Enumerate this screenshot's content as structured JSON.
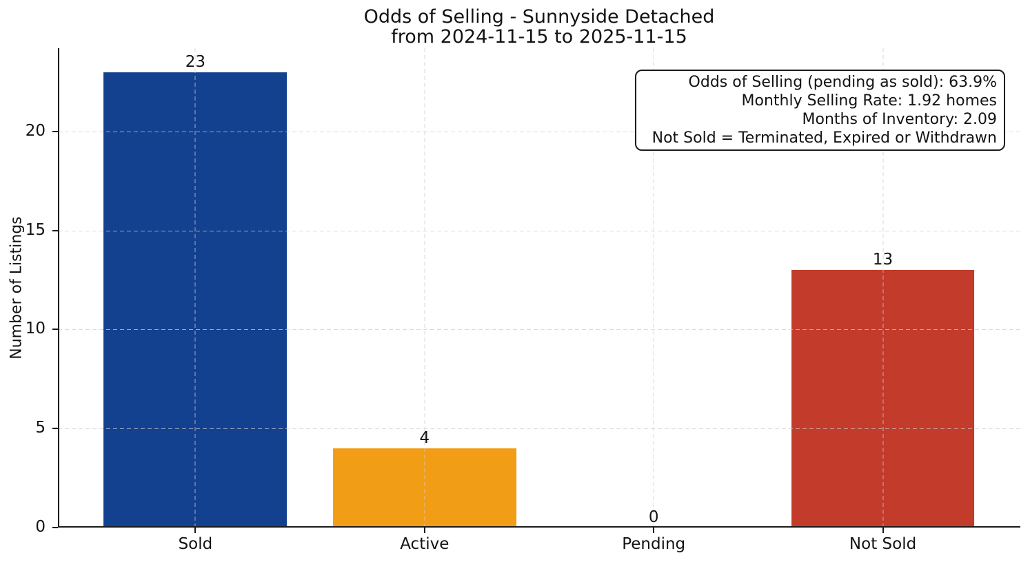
{
  "title": {
    "line1": "Odds of Selling - Sunnyside Detached",
    "line2": "from 2024-11-15 to 2025-11-15"
  },
  "annotation": {
    "lines": [
      "Odds of Selling (pending as sold): 63.9%",
      "Monthly Selling Rate: 1.92 homes",
      "Months of Inventory: 2.09",
      "Not Sold = Terminated, Expired or Withdrawn"
    ]
  },
  "chart_data": {
    "type": "bar",
    "title": "Odds of Selling - Sunnyside Detached from 2024-11-15 to 2025-11-15",
    "categories": [
      "Sold",
      "Active",
      "Pending",
      "Not Sold"
    ],
    "values": [
      23,
      4,
      0,
      13
    ],
    "value_labels": [
      "23",
      "4",
      "0",
      "13"
    ],
    "bar_colors": [
      "#14418F",
      "#F19D15",
      null,
      "#C23B2B"
    ],
    "xlabel": "",
    "ylabel": "Number of Listings",
    "yticks": [
      0,
      5,
      10,
      15,
      20
    ],
    "ylim": [
      0,
      24.2
    ],
    "xlim": [
      -0.6,
      3.6
    ],
    "bar_width": 0.8,
    "grid": true,
    "grid_style": "dashed",
    "grid_color": "#DCDCDC",
    "legend": "none",
    "axis_color": "#1A1A1A",
    "background_color": "#FFFFFF"
  }
}
